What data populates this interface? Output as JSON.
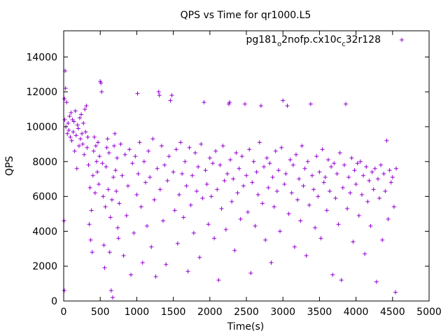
{
  "chart_data": {
    "type": "scatter",
    "title": "QPS vs Time for qr1000.L5",
    "xlabel": "Time(s)",
    "ylabel": "QPS",
    "xlim": [
      0,
      5000
    ],
    "ylim": [
      0,
      15500
    ],
    "x_ticks": [
      0,
      500,
      1000,
      1500,
      2000,
      2500,
      3000,
      3500,
      4000,
      4500,
      5000
    ],
    "y_ticks": [
      0,
      2000,
      4000,
      6000,
      8000,
      10000,
      12000,
      14000
    ],
    "grid": false,
    "legend_position": "top-right",
    "series": [
      {
        "name_parts": [
          "pg181",
          "o",
          "2nofp.cx10c",
          "c",
          "32r128"
        ],
        "name": "pg181_o2nofp.cx10c_c32r128",
        "color": "#9400d3",
        "marker": "plus",
        "points": [
          [
            5,
            4600
          ],
          [
            8,
            600
          ],
          [
            10,
            11600
          ],
          [
            15,
            10400
          ],
          [
            20,
            13200
          ],
          [
            25,
            12200
          ],
          [
            30,
            10000
          ],
          [
            40,
            11400
          ],
          [
            50,
            9600
          ],
          [
            60,
            10200
          ],
          [
            70,
            9800
          ],
          [
            80,
            10600
          ],
          [
            90,
            9400
          ],
          [
            100,
            10800
          ],
          [
            110,
            9200
          ],
          [
            120,
            10400
          ],
          [
            130,
            9700
          ],
          [
            140,
            10300
          ],
          [
            150,
            8600
          ],
          [
            160,
            10900
          ],
          [
            170,
            9500
          ],
          [
            180,
            7600
          ],
          [
            190,
            10100
          ],
          [
            200,
            9900
          ],
          [
            210,
            8900
          ],
          [
            220,
            10500
          ],
          [
            230,
            9300
          ],
          [
            240,
            10700
          ],
          [
            250,
            9600
          ],
          [
            260,
            9000
          ],
          [
            270,
            10200
          ],
          [
            280,
            8400
          ],
          [
            290,
            11000
          ],
          [
            300,
            9700
          ],
          [
            310,
            11200
          ],
          [
            320,
            8800
          ],
          [
            330,
            9400
          ],
          [
            340,
            7800
          ],
          [
            350,
            4400
          ],
          [
            360,
            6500
          ],
          [
            370,
            3500
          ],
          [
            380,
            5200
          ],
          [
            390,
            2800
          ],
          [
            400,
            7200
          ],
          [
            410,
            8600
          ],
          [
            420,
            9400
          ],
          [
            430,
            6200
          ],
          [
            440,
            8900
          ],
          [
            450,
            8000
          ],
          [
            460,
            7400
          ],
          [
            470,
            9100
          ],
          [
            480,
            6700
          ],
          [
            490,
            8300
          ],
          [
            500,
            12600
          ],
          [
            510,
            12500
          ],
          [
            520,
            12000
          ],
          [
            530,
            7900
          ],
          [
            540,
            6000
          ],
          [
            550,
            3200
          ],
          [
            560,
            1900
          ],
          [
            570,
            5400
          ],
          [
            580,
            7700
          ],
          [
            590,
            8800
          ],
          [
            600,
            9300
          ],
          [
            610,
            6400
          ],
          [
            620,
            8500
          ],
          [
            630,
            2800
          ],
          [
            640,
            4800
          ],
          [
            650,
            600
          ],
          [
            660,
            5800
          ],
          [
            670,
            200
          ],
          [
            680,
            7100
          ],
          [
            690,
            8900
          ],
          [
            700,
            9600
          ],
          [
            710,
            7500
          ],
          [
            720,
            6300
          ],
          [
            730,
            8200
          ],
          [
            740,
            4200
          ],
          [
            750,
            3600
          ],
          [
            760,
            5600
          ],
          [
            780,
            9000
          ],
          [
            800,
            7200
          ],
          [
            820,
            2600
          ],
          [
            840,
            8400
          ],
          [
            860,
            4900
          ],
          [
            880,
            6600
          ],
          [
            900,
            8700
          ],
          [
            920,
            1500
          ],
          [
            940,
            7900
          ],
          [
            960,
            3900
          ],
          [
            980,
            8300
          ],
          [
            1000,
            6100
          ],
          [
            1010,
            11900
          ],
          [
            1020,
            7300
          ],
          [
            1040,
            9100
          ],
          [
            1060,
            5400
          ],
          [
            1080,
            2200
          ],
          [
            1100,
            8000
          ],
          [
            1120,
            6800
          ],
          [
            1140,
            4300
          ],
          [
            1160,
            8600
          ],
          [
            1180,
            7100
          ],
          [
            1200,
            3100
          ],
          [
            1220,
            9300
          ],
          [
            1240,
            5800
          ],
          [
            1260,
            1400
          ],
          [
            1280,
            7600
          ],
          [
            1300,
            12000
          ],
          [
            1310,
            11800
          ],
          [
            1320,
            6400
          ],
          [
            1340,
            8900
          ],
          [
            1360,
            4600
          ],
          [
            1380,
            7800
          ],
          [
            1400,
            2100
          ],
          [
            1420,
            6900
          ],
          [
            1440,
            8300
          ],
          [
            1460,
            11500
          ],
          [
            1480,
            11800
          ],
          [
            1500,
            7400
          ],
          [
            1520,
            5200
          ],
          [
            1540,
            8700
          ],
          [
            1560,
            3300
          ],
          [
            1580,
            6100
          ],
          [
            1600,
            9100
          ],
          [
            1620,
            7300
          ],
          [
            1640,
            4800
          ],
          [
            1660,
            8000
          ],
          [
            1680,
            6600
          ],
          [
            1700,
            1700
          ],
          [
            1720,
            8800
          ],
          [
            1740,
            5500
          ],
          [
            1760,
            7200
          ],
          [
            1780,
            3900
          ],
          [
            1800,
            8500
          ],
          [
            1820,
            6300
          ],
          [
            1840,
            7700
          ],
          [
            1860,
            2500
          ],
          [
            1880,
            9000
          ],
          [
            1900,
            5900
          ],
          [
            1920,
            11400
          ],
          [
            1940,
            7500
          ],
          [
            1960,
            6700
          ],
          [
            1980,
            4400
          ],
          [
            2000,
            8200
          ],
          [
            2020,
            6000
          ],
          [
            2040,
            7900
          ],
          [
            2060,
            3600
          ],
          [
            2080,
            8600
          ],
          [
            2100,
            6400
          ],
          [
            2120,
            1200
          ],
          [
            2140,
            7800
          ],
          [
            2160,
            5300
          ],
          [
            2180,
            8900
          ],
          [
            2200,
            6900
          ],
          [
            2220,
            4100
          ],
          [
            2240,
            7300
          ],
          [
            2260,
            11300
          ],
          [
            2270,
            11400
          ],
          [
            2280,
            8100
          ],
          [
            2300,
            5700
          ],
          [
            2320,
            7000
          ],
          [
            2340,
            2900
          ],
          [
            2360,
            8500
          ],
          [
            2380,
            6200
          ],
          [
            2400,
            7600
          ],
          [
            2420,
            4700
          ],
          [
            2440,
            8300
          ],
          [
            2460,
            6600
          ],
          [
            2480,
            11300
          ],
          [
            2500,
            7200
          ],
          [
            2520,
            5100
          ],
          [
            2540,
            8700
          ],
          [
            2560,
            1600
          ],
          [
            2580,
            6800
          ],
          [
            2600,
            8000
          ],
          [
            2620,
            4300
          ],
          [
            2640,
            7400
          ],
          [
            2660,
            6100
          ],
          [
            2680,
            9100
          ],
          [
            2700,
            11200
          ],
          [
            2720,
            5600
          ],
          [
            2740,
            7700
          ],
          [
            2760,
            3500
          ],
          [
            2780,
            8200
          ],
          [
            2800,
            6500
          ],
          [
            2820,
            7900
          ],
          [
            2840,
            2200
          ],
          [
            2860,
            7100
          ],
          [
            2880,
            5400
          ],
          [
            2900,
            8600
          ],
          [
            2920,
            6300
          ],
          [
            2940,
            7500
          ],
          [
            2960,
            4000
          ],
          [
            2980,
            8800
          ],
          [
            3000,
            11500
          ],
          [
            3020,
            6700
          ],
          [
            3040,
            7300
          ],
          [
            3060,
            11200
          ],
          [
            3080,
            5000
          ],
          [
            3100,
            8100
          ],
          [
            3120,
            6200
          ],
          [
            3140,
            7800
          ],
          [
            3160,
            3100
          ],
          [
            3180,
            8400
          ],
          [
            3200,
            5800
          ],
          [
            3220,
            7000
          ],
          [
            3240,
            4600
          ],
          [
            3260,
            8900
          ],
          [
            3280,
            6600
          ],
          [
            3300,
            7600
          ],
          [
            3320,
            2600
          ],
          [
            3340,
            8000
          ],
          [
            3360,
            5500
          ],
          [
            3380,
            11300
          ],
          [
            3400,
            7200
          ],
          [
            3420,
            6400
          ],
          [
            3440,
            4200
          ],
          [
            3460,
            8300
          ],
          [
            3480,
            6000
          ],
          [
            3500,
            7400
          ],
          [
            3520,
            3600
          ],
          [
            3540,
            8700
          ],
          [
            3560,
            6800
          ],
          [
            3580,
            7100
          ],
          [
            3600,
            5200
          ],
          [
            3620,
            8100
          ],
          [
            3640,
            6300
          ],
          [
            3660,
            7700
          ],
          [
            3680,
            1500
          ],
          [
            3700,
            7900
          ],
          [
            3720,
            5900
          ],
          [
            3740,
            7300
          ],
          [
            3760,
            4400
          ],
          [
            3780,
            8500
          ],
          [
            3800,
            1200
          ],
          [
            3820,
            6500
          ],
          [
            3840,
            7800
          ],
          [
            3860,
            11300
          ],
          [
            3880,
            5300
          ],
          [
            3900,
            7100
          ],
          [
            3920,
            6200
          ],
          [
            3940,
            8200
          ],
          [
            3960,
            3400
          ],
          [
            3980,
            7500
          ],
          [
            4000,
            6700
          ],
          [
            4020,
            7900
          ],
          [
            4040,
            4900
          ],
          [
            4060,
            8000
          ],
          [
            4080,
            6100
          ],
          [
            4100,
            7200
          ],
          [
            4120,
            2700
          ],
          [
            4140,
            7700
          ],
          [
            4160,
            5700
          ],
          [
            4180,
            6900
          ],
          [
            4200,
            4300
          ],
          [
            4220,
            7400
          ],
          [
            4240,
            6400
          ],
          [
            4260,
            7600
          ],
          [
            4280,
            1100
          ],
          [
            4300,
            7000
          ],
          [
            4320,
            5900
          ],
          [
            4340,
            7800
          ],
          [
            4360,
            3500
          ],
          [
            4380,
            7300
          ],
          [
            4400,
            6300
          ],
          [
            4420,
            9200
          ],
          [
            4440,
            4700
          ],
          [
            4460,
            7500
          ],
          [
            4480,
            6800
          ],
          [
            4500,
            7100
          ],
          [
            4520,
            5400
          ],
          [
            4540,
            500
          ],
          [
            4550,
            7600
          ]
        ]
      }
    ]
  }
}
